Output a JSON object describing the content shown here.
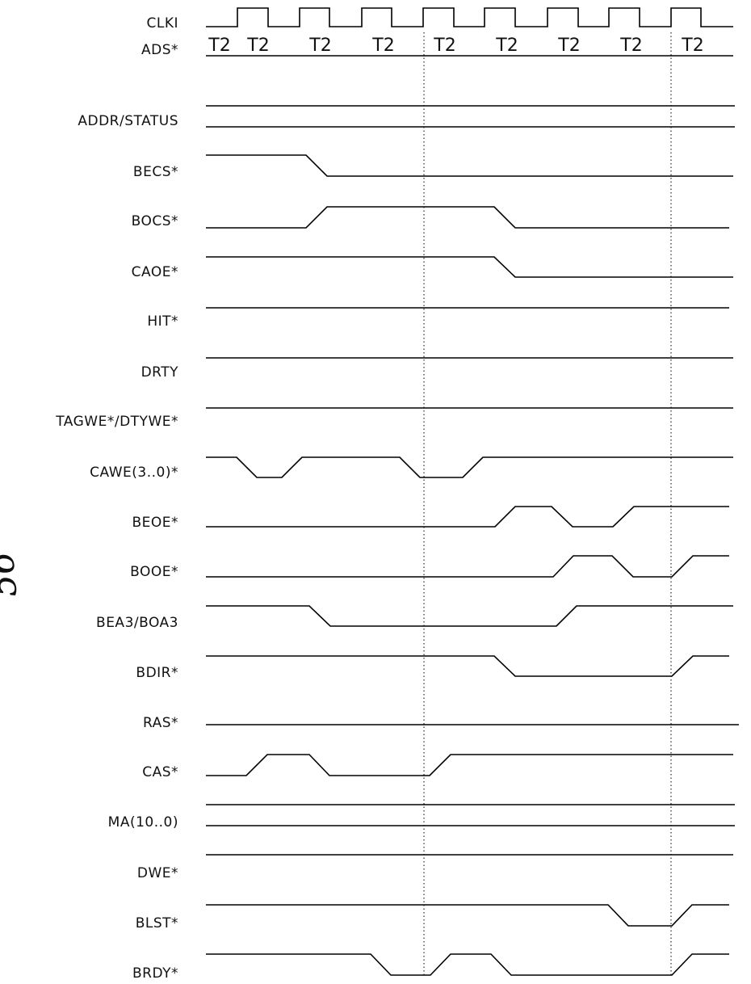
{
  "clock": {
    "name": "CLKI",
    "t_labels": [
      "T2",
      "T2",
      "T2",
      "T2",
      "T2",
      "T2",
      "T2",
      "T2",
      "T2"
    ]
  },
  "signals": [
    {
      "id": "ads",
      "name": "ADS*",
      "kind": "none"
    },
    {
      "id": "addr-status",
      "name": "ADDR/STATUS",
      "kind": "bus"
    },
    {
      "id": "becs",
      "name": "BECS*",
      "kind": "wave"
    },
    {
      "id": "bocs",
      "name": "BOCS*",
      "kind": "wave"
    },
    {
      "id": "caoe",
      "name": "CAOE*",
      "kind": "wave"
    },
    {
      "id": "hit",
      "name": "HIT*",
      "kind": "wave"
    },
    {
      "id": "drty",
      "name": "DRTY",
      "kind": "wave"
    },
    {
      "id": "tagwe-dtywe",
      "name": "TAGWE*/DTYWE*",
      "kind": "wave"
    },
    {
      "id": "cawe",
      "name": "CAWE(3..0)*",
      "kind": "wave"
    },
    {
      "id": "beoe",
      "name": "BEOE*",
      "kind": "wave"
    },
    {
      "id": "booe",
      "name": "BOOE*",
      "kind": "wave"
    },
    {
      "id": "bea3-boa3",
      "name": "BEA3/BOA3",
      "kind": "wave"
    },
    {
      "id": "bdir",
      "name": "BDIR*",
      "kind": "wave"
    },
    {
      "id": "ras",
      "name": "RAS*",
      "kind": "wave"
    },
    {
      "id": "cas",
      "name": "CAS*",
      "kind": "wave"
    },
    {
      "id": "ma",
      "name": "MA(10..0)",
      "kind": "bus"
    },
    {
      "id": "dwe",
      "name": "DWE*",
      "kind": "wave"
    },
    {
      "id": "blst",
      "name": "BLST*",
      "kind": "wave"
    },
    {
      "id": "brdy",
      "name": "BRDY*",
      "kind": "wave"
    }
  ],
  "margin_mark": "56"
}
